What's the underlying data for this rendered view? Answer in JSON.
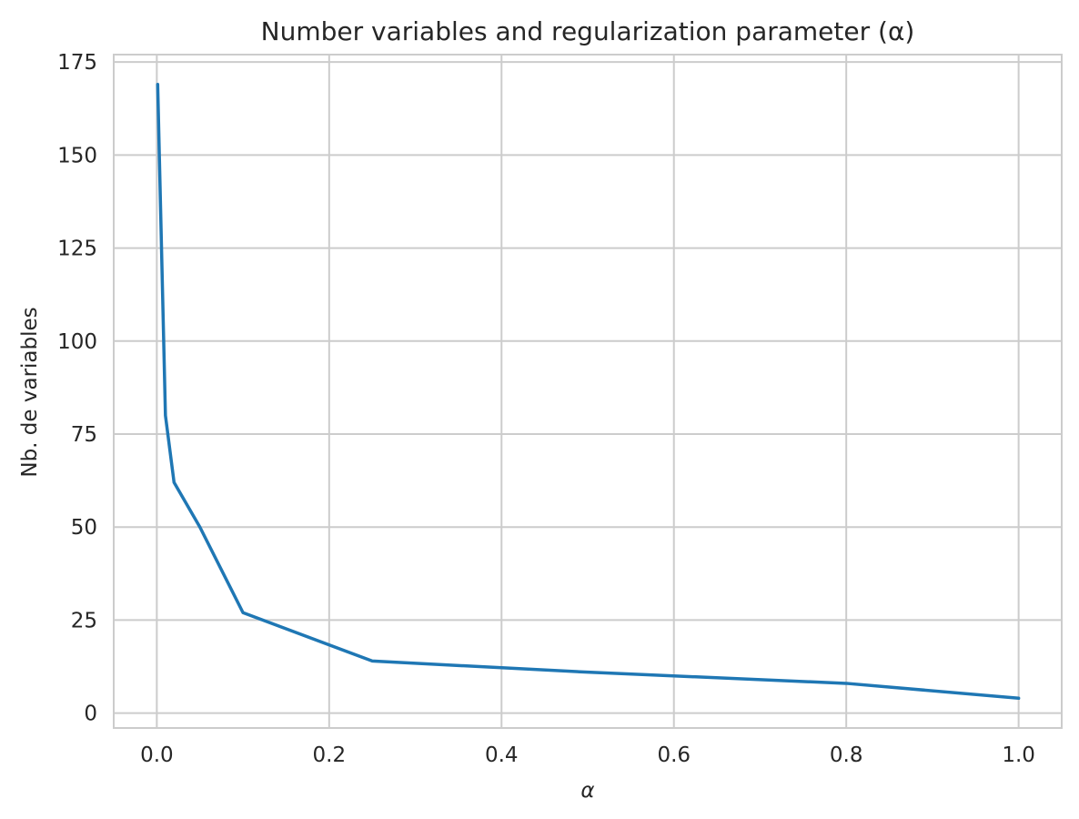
{
  "chart_data": {
    "type": "line",
    "title": "Number variables and regularization parameter (α)",
    "xlabel": "α",
    "ylabel": "Nb. de variables",
    "xlim": [
      -0.05,
      1.05
    ],
    "ylim": [
      -4,
      177
    ],
    "xticks": [
      0.0,
      0.2,
      0.4,
      0.6,
      0.8,
      1.0
    ],
    "xtick_labels": [
      "0.0",
      "0.2",
      "0.4",
      "0.6",
      "0.8",
      "1.0"
    ],
    "yticks": [
      0,
      25,
      50,
      75,
      100,
      125,
      150,
      175
    ],
    "ytick_labels": [
      "0",
      "25",
      "50",
      "75",
      "100",
      "125",
      "150",
      "175"
    ],
    "grid": true,
    "series": [
      {
        "color": "#1f77b4",
        "x": [
          0.001,
          0.01,
          0.02,
          0.05,
          0.1,
          0.25,
          0.5,
          0.8,
          1.0
        ],
        "y": [
          169,
          80,
          62,
          50,
          27,
          14,
          11,
          8,
          4
        ]
      }
    ]
  }
}
